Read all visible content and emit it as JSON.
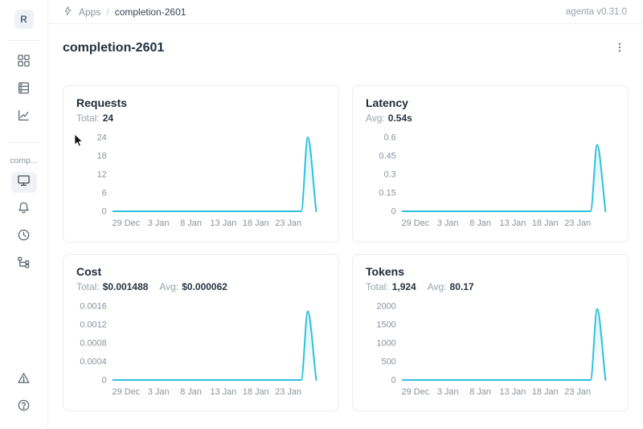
{
  "header": {
    "breadcrumb": {
      "root": "Apps",
      "separator": "/",
      "current": "completion-2601"
    },
    "version": "agenta v0.31.0",
    "logo_icon": "bolt-icon"
  },
  "sidebar": {
    "avatar_letter": "R",
    "workspace_label": "comp...",
    "top_icons": [
      "apps-grid-icon",
      "table-rows-icon",
      "chart-line-icon"
    ],
    "app_icons": [
      "monitor-icon",
      "bell-icon",
      "history-icon",
      "tree-icon"
    ],
    "selected_icon": "monitor-icon",
    "bottom_icons": [
      "warning-triangle-icon",
      "question-circle-icon"
    ]
  },
  "page": {
    "title": "completion-2601",
    "menu_icon": "ellipsis-vertical-icon"
  },
  "colors": {
    "line": "#2fc0dc",
    "area_fill_top": "rgba(47,192,220,0.20)",
    "area_fill_bottom": "rgba(47,192,220,0)",
    "tick_text": "#8b929c",
    "card_border": "#ececec"
  },
  "chart_data": [
    {
      "type": "area",
      "title": "Requests",
      "stats": [
        {
          "label": "Total:",
          "value": "24"
        }
      ],
      "x_domain": [
        0,
        32
      ],
      "x_ticks": [
        {
          "day": 2,
          "label": "29 Dec"
        },
        {
          "day": 7,
          "label": "3 Jan"
        },
        {
          "day": 12,
          "label": "8 Jan"
        },
        {
          "day": 17,
          "label": "13 Jan"
        },
        {
          "day": 22,
          "label": "18 Jan"
        },
        {
          "day": 27,
          "label": "23 Jan"
        }
      ],
      "ylim": [
        0,
        24
      ],
      "y_ticks": [
        {
          "value": 0,
          "label": "0"
        },
        {
          "value": 6,
          "label": "6"
        },
        {
          "value": 12,
          "label": "12"
        },
        {
          "value": 18,
          "label": "18"
        },
        {
          "value": 24,
          "label": "24"
        }
      ],
      "points": [
        [
          0,
          0
        ],
        [
          7,
          0
        ],
        [
          14,
          0
        ],
        [
          21,
          0
        ],
        [
          28,
          0
        ],
        [
          29,
          0
        ],
        [
          30,
          24
        ],
        [
          31.3,
          0
        ]
      ]
    },
    {
      "type": "area",
      "title": "Latency",
      "stats": [
        {
          "label": "Avg:",
          "value": "0.54s"
        }
      ],
      "x_domain": [
        0,
        32
      ],
      "x_ticks": [
        {
          "day": 2,
          "label": "29 Dec"
        },
        {
          "day": 7,
          "label": "3 Jan"
        },
        {
          "day": 12,
          "label": "8 Jan"
        },
        {
          "day": 17,
          "label": "13 Jan"
        },
        {
          "day": 22,
          "label": "18 Jan"
        },
        {
          "day": 27,
          "label": "23 Jan"
        }
      ],
      "ylim": [
        0,
        0.6
      ],
      "y_ticks": [
        {
          "value": 0,
          "label": "0"
        },
        {
          "value": 0.15,
          "label": "0.15"
        },
        {
          "value": 0.3,
          "label": "0.3"
        },
        {
          "value": 0.45,
          "label": "0.45"
        },
        {
          "value": 0.6,
          "label": "0.6"
        }
      ],
      "points": [
        [
          0,
          0
        ],
        [
          7,
          0
        ],
        [
          14,
          0
        ],
        [
          21,
          0
        ],
        [
          28,
          0
        ],
        [
          29,
          0
        ],
        [
          30,
          0.54
        ],
        [
          31.3,
          0
        ]
      ]
    },
    {
      "type": "area",
      "title": "Cost",
      "stats": [
        {
          "label": "Total:",
          "value": "$0.001488"
        },
        {
          "label": "Avg:",
          "value": "$0.000062"
        }
      ],
      "x_domain": [
        0,
        32
      ],
      "x_ticks": [
        {
          "day": 2,
          "label": "29 Dec"
        },
        {
          "day": 7,
          "label": "3 Jan"
        },
        {
          "day": 12,
          "label": "8 Jan"
        },
        {
          "day": 17,
          "label": "13 Jan"
        },
        {
          "day": 22,
          "label": "18 Jan"
        },
        {
          "day": 27,
          "label": "23 Jan"
        }
      ],
      "ylim": [
        0,
        0.0016
      ],
      "y_ticks": [
        {
          "value": 0,
          "label": "0"
        },
        {
          "value": 0.0004,
          "label": "0.0004"
        },
        {
          "value": 0.0008,
          "label": "0.0008"
        },
        {
          "value": 0.0012,
          "label": "0.0012"
        },
        {
          "value": 0.0016,
          "label": "0.0016"
        }
      ],
      "points": [
        [
          0,
          0
        ],
        [
          7,
          0
        ],
        [
          14,
          0
        ],
        [
          21,
          0
        ],
        [
          28,
          0
        ],
        [
          29,
          0
        ],
        [
          30,
          0.001488
        ],
        [
          31.3,
          0
        ]
      ]
    },
    {
      "type": "area",
      "title": "Tokens",
      "stats": [
        {
          "label": "Total:",
          "value": "1,924"
        },
        {
          "label": "Avg:",
          "value": "80.17"
        }
      ],
      "x_domain": [
        0,
        32
      ],
      "x_ticks": [
        {
          "day": 2,
          "label": "29 Dec"
        },
        {
          "day": 7,
          "label": "3 Jan"
        },
        {
          "day": 12,
          "label": "8 Jan"
        },
        {
          "day": 17,
          "label": "13 Jan"
        },
        {
          "day": 22,
          "label": "18 Jan"
        },
        {
          "day": 27,
          "label": "23 Jan"
        }
      ],
      "ylim": [
        0,
        2000
      ],
      "y_ticks": [
        {
          "value": 0,
          "label": "0"
        },
        {
          "value": 500,
          "label": "500"
        },
        {
          "value": 1000,
          "label": "1000"
        },
        {
          "value": 1500,
          "label": "1500"
        },
        {
          "value": 2000,
          "label": "2000"
        }
      ],
      "points": [
        [
          0,
          0
        ],
        [
          7,
          0
        ],
        [
          14,
          0
        ],
        [
          21,
          0
        ],
        [
          28,
          0
        ],
        [
          29,
          0
        ],
        [
          30,
          1924
        ],
        [
          31.3,
          0
        ]
      ]
    }
  ]
}
